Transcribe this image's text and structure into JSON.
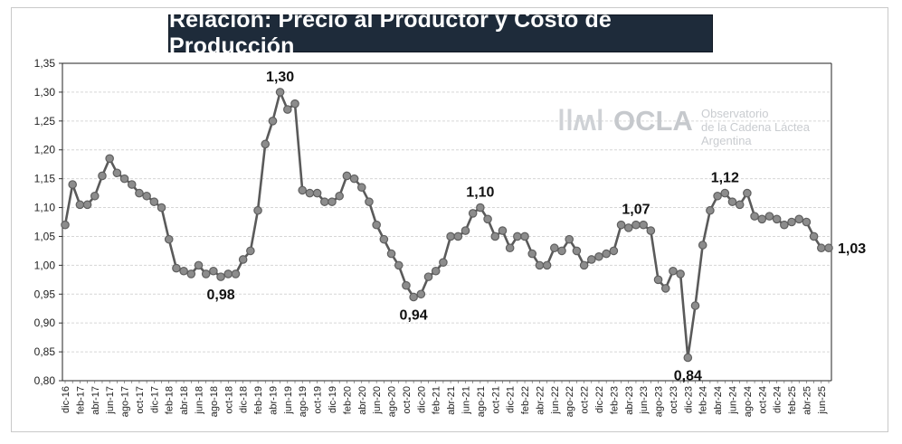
{
  "chart_data": {
    "type": "line",
    "title": "Relación: Precio al Productor y Costo de Producción",
    "ylim": [
      0.8,
      1.35
    ],
    "y_ticks": [
      "0,80",
      "0,85",
      "0,90",
      "0,95",
      "1,00",
      "1,05",
      "1,10",
      "1,15",
      "1,20",
      "1,25",
      "1,30",
      "1,35"
    ],
    "grid": true,
    "colors": {
      "line": "#5a5a5a",
      "marker_fill": "#8c8c8c",
      "marker_stroke": "#5f5f5f",
      "grid": "#d6d6d6"
    },
    "x_tick_labels": [
      "dic-16",
      "feb-17",
      "abr-17",
      "jun-17",
      "ago-17",
      "oct-17",
      "dic-17",
      "feb-18",
      "abr-18",
      "jun-18",
      "ago-18",
      "oct-18",
      "dic-18",
      "feb-19",
      "abr-19",
      "jun-19",
      "ago-19",
      "oct-19",
      "dic-19",
      "feb-20",
      "abr-20",
      "jun-20",
      "ago-20",
      "oct-20",
      "dic-20",
      "feb-21",
      "abr-21",
      "jun-21",
      "ago-21",
      "oct-21",
      "dic-21",
      "feb-22",
      "abr-22",
      "jun-22",
      "ago-22",
      "oct-22",
      "dic-22",
      "feb-23",
      "abr-23",
      "jun-23",
      "ago-23",
      "oct-23",
      "dic-23",
      "feb-24",
      "abr-24",
      "jun-24",
      "ago-24",
      "oct-24",
      "dic-24",
      "feb-25",
      "abr-25",
      "jun-25"
    ],
    "series": [
      {
        "values": [
          1.07,
          1.14,
          1.105,
          1.105,
          1.12,
          1.155,
          1.185,
          1.16,
          1.15,
          1.14,
          1.125,
          1.12,
          1.11,
          1.1,
          1.045,
          0.995,
          0.99,
          0.985,
          1.0,
          0.985,
          0.99,
          0.98,
          0.985,
          0.985,
          1.01,
          1.025,
          1.095,
          1.21,
          1.25,
          1.3,
          1.27,
          1.28,
          1.13,
          1.125,
          1.125,
          1.11,
          1.11,
          1.12,
          1.155,
          1.15,
          1.135,
          1.11,
          1.07,
          1.045,
          1.02,
          1.0,
          0.965,
          0.945,
          0.95,
          0.98,
          0.99,
          1.005,
          1.05,
          1.05,
          1.06,
          1.09,
          1.1,
          1.08,
          1.05,
          1.06,
          1.03,
          1.05,
          1.05,
          1.02,
          1.0,
          1.0,
          1.03,
          1.025,
          1.045,
          1.025,
          1.0,
          1.01,
          1.015,
          1.02,
          1.025,
          1.07,
          1.065,
          1.07,
          1.07,
          1.06,
          0.975,
          0.96,
          0.99,
          0.985,
          0.84,
          0.93,
          1.035,
          1.095,
          1.12,
          1.125,
          1.11,
          1.105,
          1.125,
          1.085,
          1.08,
          1.085,
          1.08,
          1.07,
          1.075,
          1.08,
          1.075,
          1.05,
          1.03,
          1.03
        ]
      }
    ],
    "data_labels": [
      {
        "index": 29,
        "text": "1,30",
        "pos": "above"
      },
      {
        "index": 21,
        "text": "0,98",
        "pos": "below"
      },
      {
        "index": 47,
        "text": "0,94",
        "pos": "below"
      },
      {
        "index": 56,
        "text": "1,10",
        "pos": "above"
      },
      {
        "index": 77,
        "text": "1,07",
        "pos": "above"
      },
      {
        "index": 84,
        "text": "0,84",
        "pos": "below"
      },
      {
        "index": 89,
        "text": "1,12",
        "pos": "above"
      },
      {
        "index": 103,
        "text": "1,03",
        "pos": "right"
      }
    ]
  },
  "watermark": {
    "brand": "OCLA",
    "line1": "Observatorio",
    "line2": "de la Cadena Láctea",
    "line3": "Argentina"
  }
}
